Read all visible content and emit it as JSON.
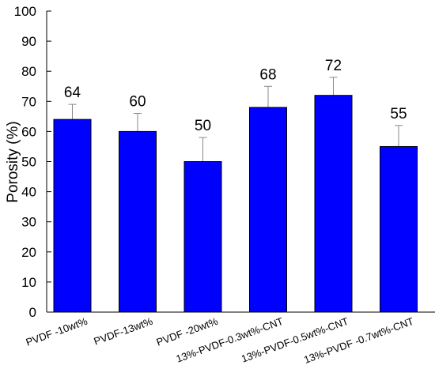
{
  "chart_data": {
    "type": "bar",
    "categories": [
      "PVDF -10wt%",
      "PVDF-13wt%",
      "PVDF -20wt%",
      "13%-PVDF-0.3wt%-CNT",
      "13%-PVDF-0.5wt%-CNT",
      "13%-PVDF -0.7wt%-CNT"
    ],
    "values": [
      64,
      60,
      50,
      68,
      72,
      55
    ],
    "errors": [
      5,
      6,
      8,
      7,
      6,
      7
    ],
    "data_labels": [
      "64",
      "60",
      "50",
      "68",
      "72",
      "55"
    ],
    "ylabel": "Porosity (%)",
    "xlabel": "",
    "title": "",
    "ylim": [
      0,
      100
    ],
    "yticks": [
      0,
      10,
      20,
      30,
      40,
      50,
      60,
      70,
      80,
      90,
      100
    ],
    "grid": false,
    "legend": "none",
    "bar_color": "#0000ff",
    "bar_edge_color": "#000000",
    "error_bar_color": "#888888"
  }
}
